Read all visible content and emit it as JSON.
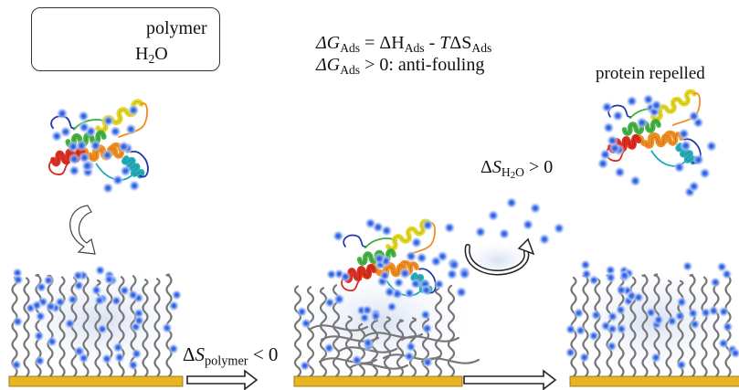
{
  "legend": {
    "polymer_label": "polymer",
    "water_label": "H",
    "water_sub": "2",
    "water_tail": "O"
  },
  "equation": {
    "line1": {
      "dg": "ΔG",
      "dg_sub": "Ads",
      "eq": " = ΔH",
      "dh_sub": "Ads",
      "minus": " - ",
      "t": "T",
      "ds": "ΔS",
      "ds_sub": "Ads"
    },
    "line2": {
      "dg": "ΔG",
      "dg_sub": "Ads",
      "rest": " > 0: anti-fouling"
    }
  },
  "labels": {
    "protein_repelled": "protein repelled",
    "ds_polymer": {
      "delta": "Δ",
      "s": "S",
      "sub": "polymer",
      "rest": " < 0"
    },
    "ds_water": {
      "delta": "Δ",
      "s": "S",
      "sub_h": "H",
      "sub_2": "2",
      "sub_o": "O",
      "rest": " > 0"
    }
  },
  "colors": {
    "substrate": "#e8b421",
    "polymer": "#777777",
    "water": "#2f5fe0",
    "water_halo": "#b9cdf5",
    "helix_yellow": "#e3d51a",
    "helix_orange": "#f08a1d",
    "helix_red": "#d9261a",
    "helix_green": "#3cae3c",
    "helix_cyan": "#1ba8b8",
    "loop_blue": "#2436a8"
  },
  "icons": [
    "polymer-icon",
    "water-molecule-icon",
    "curved-arrow-icon",
    "circular-arrow-icon",
    "right-arrow-icon"
  ]
}
